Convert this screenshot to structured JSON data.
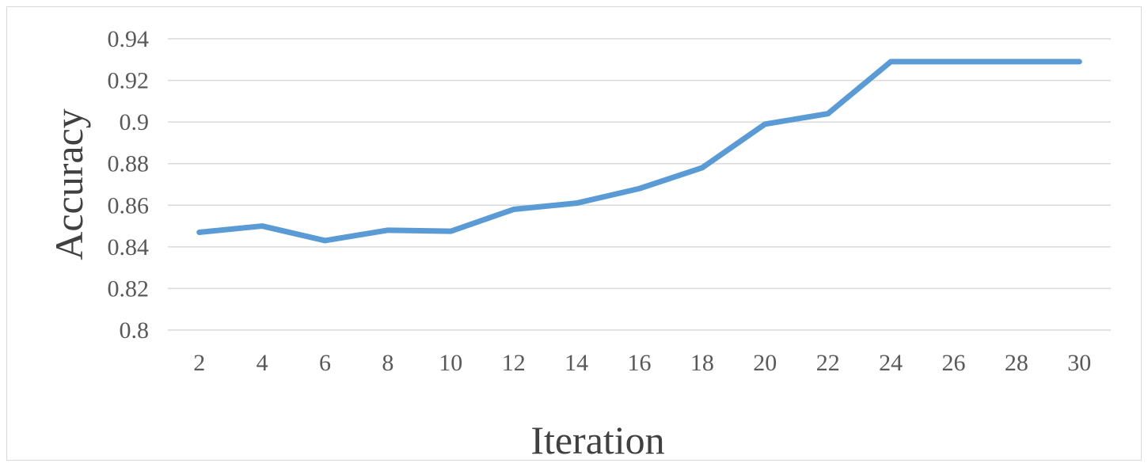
{
  "chart_data": {
    "type": "line",
    "title": "",
    "xlabel": "Iteration",
    "ylabel": "Accuracy",
    "categories": [
      "2",
      "4",
      "6",
      "8",
      "10",
      "12",
      "14",
      "16",
      "18",
      "20",
      "22",
      "24",
      "26",
      "28",
      "30"
    ],
    "series": [
      {
        "values": [
          0.847,
          0.85,
          0.843,
          0.848,
          0.8475,
          0.858,
          0.861,
          0.868,
          0.878,
          0.899,
          0.904,
          0.929,
          0.929,
          0.929,
          0.929
        ]
      }
    ],
    "ylim": [
      0.8,
      0.94
    ],
    "yticks": [
      "0.8",
      "0.82",
      "0.84",
      "0.86",
      "0.88",
      "0.9",
      "0.92",
      "0.94"
    ],
    "grid": true,
    "legend": "none",
    "colors": {
      "series": "#5b9bd5",
      "grid": "#d9d9d9",
      "tick_text": "#595959",
      "title_text": "#404040"
    }
  }
}
